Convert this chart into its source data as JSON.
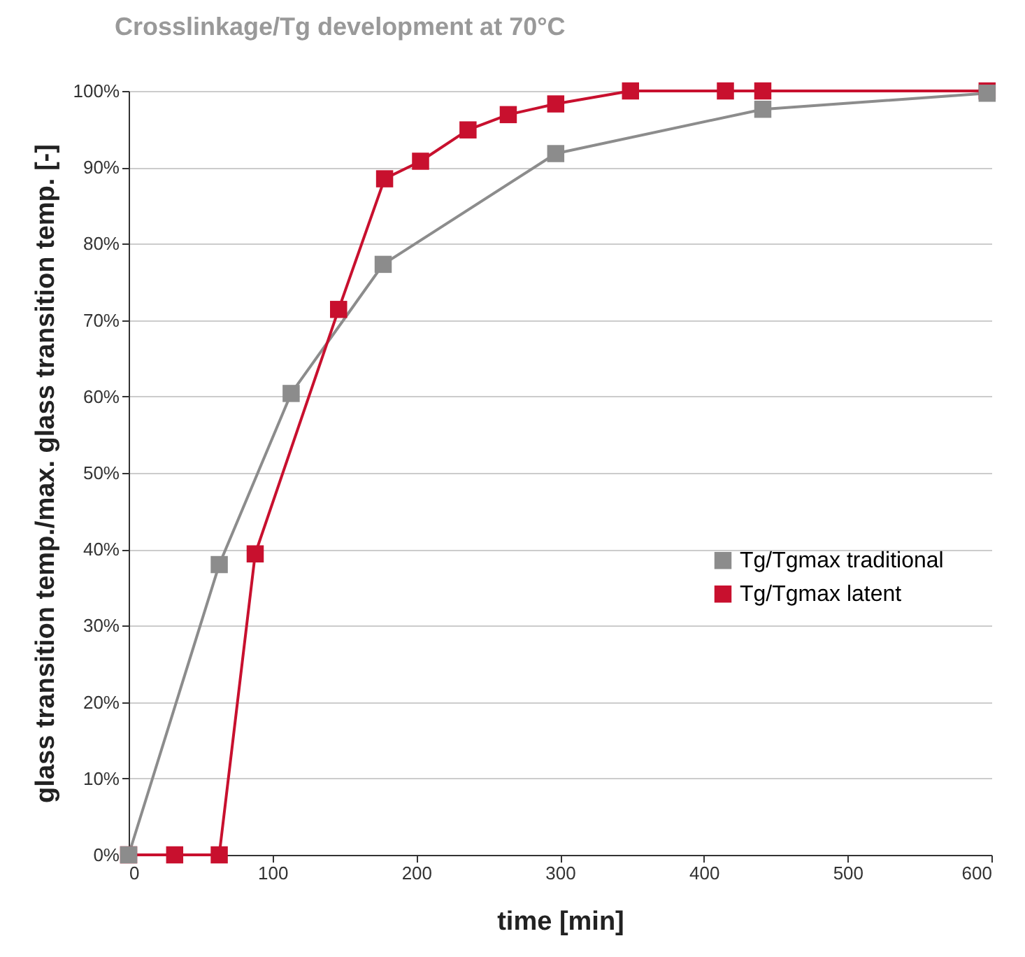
{
  "chart_data": {
    "type": "line",
    "title": "Crosslinkage/Tg development at 70°C",
    "xlabel": "time [min]",
    "ylabel": "glass transition temp./max. glass transition temp. [-]",
    "xlim": [
      0,
      600
    ],
    "xticks": [
      0,
      100,
      200,
      300,
      400,
      500,
      600
    ],
    "ylim": [
      0,
      100
    ],
    "yticks": [
      {
        "value": 0,
        "label": "0%"
      },
      {
        "value": 10,
        "label": "10%"
      },
      {
        "value": 20,
        "label": "20%"
      },
      {
        "value": 30,
        "label": "30%"
      },
      {
        "value": 40,
        "label": "40%"
      },
      {
        "value": 50,
        "label": "50%"
      },
      {
        "value": 60,
        "label": "60%"
      },
      {
        "value": 70,
        "label": "70%"
      },
      {
        "value": 80,
        "label": "80%"
      },
      {
        "value": 90,
        "label": "90%"
      },
      {
        "value": 100,
        "label": "100%"
      }
    ],
    "grid": "y",
    "legend": "right",
    "marker": "square",
    "line_style": "solid",
    "series": [
      {
        "name": "Tg/Tgmax traditional",
        "color": "#8c8c8c",
        "x": [
          0,
          63,
          113,
          177,
          297,
          441,
          597
        ],
        "values": [
          0,
          38,
          60.4,
          77.3,
          91.8,
          97.6,
          99.7
        ]
      },
      {
        "name": "Tg/Tgmax latent",
        "color": "#c8102e",
        "x": [
          0,
          32,
          63,
          88,
          146,
          178,
          203,
          236,
          264,
          297,
          349,
          415,
          441,
          597
        ],
        "values": [
          0,
          0,
          0,
          39.4,
          71.4,
          88.5,
          90.8,
          94.9,
          96.9,
          98.3,
          100,
          100,
          100,
          100
        ]
      }
    ]
  }
}
